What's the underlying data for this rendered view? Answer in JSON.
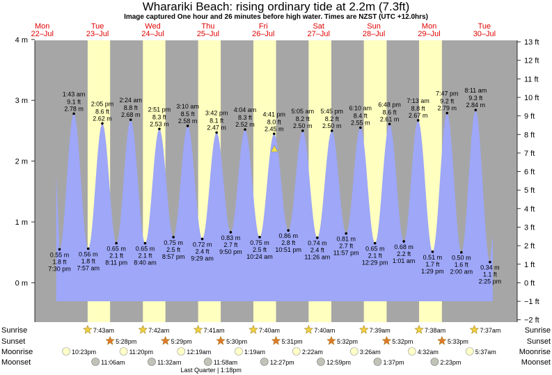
{
  "title": "Wharariki Beach: rising  ordinary tide at 2.2m (7.3ft)",
  "subtitle": "Image captured One hour and 26 minutes before high water. Times are NZST (UTC +12.0hrs)",
  "colors": {
    "night": "#a6a6a6",
    "day": "#ffffc0",
    "tide": "#9ea7f8",
    "dayLabel": "#e00000",
    "sunriseStar": "#f0d040",
    "sunsetStar": "#e07a2a",
    "moonrise": "#ffffc8",
    "moonset": "#c0c4b8"
  },
  "days": [
    {
      "name": "Mon",
      "date": "22–Jul"
    },
    {
      "name": "Tue",
      "date": "23–Jul"
    },
    {
      "name": "Wed",
      "date": "24–Jul"
    },
    {
      "name": "Thu",
      "date": "25–Jul"
    },
    {
      "name": "Fri",
      "date": "26–Jul"
    },
    {
      "name": "Sat",
      "date": "27–Jul"
    },
    {
      "name": "Sun",
      "date": "28–Jul"
    },
    {
      "name": "Mon",
      "date": "29–Jul"
    },
    {
      "name": "Tue",
      "date": "30–Jul"
    }
  ],
  "row_labels": {
    "sunrise": "Sunrise",
    "sunset": "Sunset",
    "moonrise": "Moonrise",
    "moonset": "Moonset"
  },
  "current_tide": {
    "label": "rising ordinary tide",
    "height_m": 2.2,
    "height_ft": 7.3,
    "time": "26-Jul 3:15pm"
  },
  "chart_data": {
    "type": "area",
    "title": "Wharariki Beach: rising  ordinary tide at 2.2m (7.3ft)",
    "ylabel_left": "m",
    "ylabel_right": "ft",
    "ylim_m": [
      -0.5,
      4.0
    ],
    "yticks_m": [
      "4 m",
      "3 m",
      "2 m",
      "1 m",
      "0 m"
    ],
    "yticks_ft": [
      "13 ft",
      "12 ft",
      "11 ft",
      "10 ft",
      "9 ft",
      "8 ft",
      "7 ft",
      "6 ft",
      "5 ft",
      "4 ft",
      "3 ft",
      "2 ft",
      "1 ft",
      "0 ft",
      "−1 ft",
      "−2 ft"
    ],
    "tides": [
      {
        "kind": "low",
        "time": "7:30 pm",
        "m": 0.55,
        "ft": "1.8 ft",
        "label_m": "0.55 m",
        "x_days": 0.8125
      },
      {
        "kind": "high",
        "time": "1:43 am",
        "m": 2.78,
        "ft": "9.1 ft",
        "label_m": "2.78 m",
        "x_days": 1.0715
      },
      {
        "kind": "low",
        "time": "7:57 am",
        "m": 0.56,
        "ft": "1.8 ft",
        "label_m": "0.56 m",
        "x_days": 1.3313
      },
      {
        "kind": "high",
        "time": "2:05 pm",
        "m": 2.62,
        "ft": "8.6 ft",
        "label_m": "2.62 m",
        "x_days": 1.5868
      },
      {
        "kind": "low",
        "time": "8:11 pm",
        "m": 0.65,
        "ft": "2.1 ft",
        "label_m": "0.65 m",
        "x_days": 1.841
      },
      {
        "kind": "high",
        "time": "2:24 am",
        "m": 2.68,
        "ft": "8.8 ft",
        "label_m": "2.68 m",
        "x_days": 2.1
      },
      {
        "kind": "low",
        "time": "8:40 am",
        "m": 0.65,
        "ft": "2.1 ft",
        "label_m": "0.65 m",
        "x_days": 2.3611
      },
      {
        "kind": "high",
        "time": "2:51 pm",
        "m": 2.53,
        "ft": "8.3 ft",
        "label_m": "2.53 m",
        "x_days": 2.6188
      },
      {
        "kind": "low",
        "time": "8:57 pm",
        "m": 0.75,
        "ft": "2.5 ft",
        "label_m": "0.75 m",
        "x_days": 2.8729
      },
      {
        "kind": "high",
        "time": "3:10 am",
        "m": 2.58,
        "ft": "8.5 ft",
        "label_m": "2.58 m",
        "x_days": 3.1319
      },
      {
        "kind": "low",
        "time": "9:29 am",
        "m": 0.72,
        "ft": "2.4 ft",
        "label_m": "0.72 m",
        "x_days": 3.3951
      },
      {
        "kind": "high",
        "time": "3:42 pm",
        "m": 2.47,
        "ft": "8.1 ft",
        "label_m": "2.47 m",
        "x_days": 3.6542
      },
      {
        "kind": "low",
        "time": "9:50 pm",
        "m": 0.83,
        "ft": "2.7 ft",
        "label_m": "0.83 m",
        "x_days": 3.9097
      },
      {
        "kind": "high",
        "time": "4:04 am",
        "m": 2.52,
        "ft": "8.3 ft",
        "label_m": "2.52 m",
        "x_days": 4.1694
      },
      {
        "kind": "low",
        "time": "10:24 am",
        "m": 0.75,
        "ft": "2.5 ft",
        "label_m": "0.75 m",
        "x_days": 4.4333
      },
      {
        "kind": "high",
        "time": "4:41 pm",
        "m": 2.45,
        "ft": "8.0 ft",
        "label_m": "2.45 m",
        "x_days": 4.6951
      },
      {
        "kind": "low",
        "time": "10:51 pm",
        "m": 0.86,
        "ft": "2.8 ft",
        "label_m": "0.86 m",
        "x_days": 4.9521
      },
      {
        "kind": "high",
        "time": "5:05 am",
        "m": 2.5,
        "ft": "8.2 ft",
        "label_m": "2.50 m",
        "x_days": 5.2118
      },
      {
        "kind": "low",
        "time": "11:26 am",
        "m": 0.74,
        "ft": "2.4 ft",
        "label_m": "0.74 m",
        "x_days": 5.4764
      },
      {
        "kind": "high",
        "time": "5:45 pm",
        "m": 2.5,
        "ft": "8.2 ft",
        "label_m": "2.50 m",
        "x_days": 5.7396
      },
      {
        "kind": "low",
        "time": "11:57 pm",
        "m": 0.81,
        "ft": "2.7 ft",
        "label_m": "0.81 m",
        "x_days": 5.9979
      },
      {
        "kind": "high",
        "time": "6:10 am",
        "m": 2.55,
        "ft": "8.4 ft",
        "label_m": "2.55 m",
        "x_days": 6.2569
      },
      {
        "kind": "low",
        "time": "12:29 pm",
        "m": 0.65,
        "ft": "2.1 ft",
        "label_m": "0.65 m",
        "x_days": 6.5201
      },
      {
        "kind": "high",
        "time": "6:48 pm",
        "m": 2.61,
        "ft": "8.6 ft",
        "label_m": "2.61 m",
        "x_days": 6.7833
      },
      {
        "kind": "low",
        "time": "1:01 am",
        "m": 0.68,
        "ft": "2.2 ft",
        "label_m": "0.68 m",
        "x_days": 7.0424
      },
      {
        "kind": "high",
        "time": "7:13 am",
        "m": 2.67,
        "ft": "8.8 ft",
        "label_m": "2.67 m",
        "x_days": 7.3007
      },
      {
        "kind": "low",
        "time": "1:29 pm",
        "m": 0.51,
        "ft": "1.7 ft",
        "label_m": "0.51 m",
        "x_days": 7.5618
      },
      {
        "kind": "high",
        "time": "7:47 pm",
        "m": 2.79,
        "ft": "9.2 ft",
        "label_m": "2.79 m",
        "x_days": 7.8243
      },
      {
        "kind": "low",
        "time": "2:00 am",
        "m": 0.5,
        "ft": "1.6 ft",
        "label_m": "0.50 m",
        "x_days": 8.0833
      },
      {
        "kind": "high",
        "time": "8:11 am",
        "m": 2.84,
        "ft": "9.3 ft",
        "label_m": "2.84 m",
        "x_days": 8.341
      },
      {
        "kind": "low",
        "time": "2:25 pm",
        "m": 0.34,
        "ft": "1.1 ft",
        "label_m": "0.34 m",
        "x_days": 8.6007
      }
    ],
    "daylight": [
      {
        "rise_x": 1.3215,
        "set_x": 1.7278
      },
      {
        "rise_x": 2.3208,
        "set_x": 2.7285
      },
      {
        "rise_x": 3.3201,
        "set_x": 3.7292
      },
      {
        "rise_x": 4.3194,
        "set_x": 4.7299
      },
      {
        "rise_x": 5.3194,
        "set_x": 5.7306
      },
      {
        "rise_x": 6.3188,
        "set_x": 6.7306
      },
      {
        "rise_x": 7.3181,
        "set_x": 7.7313
      }
    ],
    "sunrise": [
      {
        "x": 1.3215,
        "time": "7:43am"
      },
      {
        "x": 2.3208,
        "time": "7:42am"
      },
      {
        "x": 3.3201,
        "time": "7:41am"
      },
      {
        "x": 4.3194,
        "time": "7:40am"
      },
      {
        "x": 5.3194,
        "time": "7:40am"
      },
      {
        "x": 6.3188,
        "time": "7:39am"
      },
      {
        "x": 7.3181,
        "time": "7:38am"
      },
      {
        "x": 8.3174,
        "time": "7:37am"
      }
    ],
    "sunset": [
      {
        "x": 1.7278,
        "time": "5:28pm"
      },
      {
        "x": 2.7285,
        "time": "5:29pm"
      },
      {
        "x": 3.7292,
        "time": "5:30pm"
      },
      {
        "x": 4.7299,
        "time": "5:31pm"
      },
      {
        "x": 5.7306,
        "time": "5:32pm"
      },
      {
        "x": 6.7306,
        "time": "5:32pm"
      },
      {
        "x": 7.7313,
        "time": "5:33pm"
      }
    ],
    "moonrise": [
      {
        "x": 0.9326,
        "time": "10:23pm"
      },
      {
        "x": 1.9722,
        "time": "11:20pm"
      },
      {
        "x": 3.0132,
        "time": "12:19am"
      },
      {
        "x": 4.0549,
        "time": "1:19am"
      },
      {
        "x": 5.0986,
        "time": "2:22am"
      },
      {
        "x": 6.1431,
        "time": "3:26am"
      },
      {
        "x": 7.1889,
        "time": "4:32am"
      },
      {
        "x": 8.234,
        "time": "5:37am"
      }
    ],
    "moonset": [
      {
        "x": 1.4625,
        "time": "11:06am"
      },
      {
        "x": 2.4806,
        "time": "11:32am"
      },
      {
        "x": 3.4986,
        "time": "11:58am"
      },
      {
        "x": 4.5188,
        "time": "12:27pm"
      },
      {
        "x": 5.541,
        "time": "12:59pm"
      },
      {
        "x": 6.5674,
        "time": "1:37pm"
      },
      {
        "x": 7.5993,
        "time": "2:23pm"
      }
    ],
    "moon_phase": {
      "label": "Last Quarter | 1:18pm",
      "x": 3.5542
    }
  }
}
